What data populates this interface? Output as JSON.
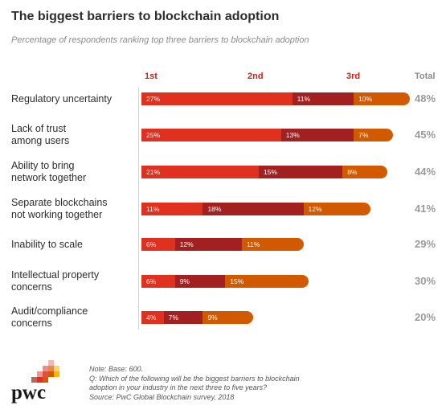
{
  "title": "The biggest barriers to blockchain adoption",
  "subtitle": "Percentage of respondents ranking top three barriers to blockchain adoption",
  "headers": {
    "first": "1st",
    "second": "2nd",
    "third": "3rd",
    "total": "Total"
  },
  "colors": {
    "first": "#e0301e",
    "second": "#a32020",
    "third": "#d15a00",
    "header": "#c2261d",
    "total": "#9a9a9a"
  },
  "chart_data": {
    "type": "bar",
    "stacked": true,
    "orientation": "horizontal",
    "categories": [
      "Regulatory uncertainty",
      "Lack of trust\namong users",
      "Ability to bring\nnetwork together",
      "Separate blockchains\nnot working together",
      "Inability to scale",
      "Intellectual property\nconcerns",
      "Audit/compliance\nconcerns"
    ],
    "series": [
      {
        "name": "1st",
        "values": [
          27,
          25,
          21,
          11,
          6,
          6,
          4
        ]
      },
      {
        "name": "2nd",
        "values": [
          11,
          13,
          15,
          18,
          12,
          9,
          7
        ]
      },
      {
        "name": "3rd",
        "values": [
          10,
          7,
          8,
          12,
          11,
          15,
          9
        ]
      }
    ],
    "totals": [
      "48%",
      "45%",
      "44%",
      "41%",
      "29%",
      "30%",
      "20%"
    ],
    "xlim": [
      0,
      50
    ]
  },
  "notes": {
    "base": "Note: Base: 600.",
    "question_line1": "Q: Which of the following will be the biggest barriers to blockchain",
    "question_line2": "adoption in your industry in the next three to five years?",
    "source": "Source: PwC Global Blockchain survey, 2018"
  },
  "logo": {
    "text": "pwc"
  }
}
